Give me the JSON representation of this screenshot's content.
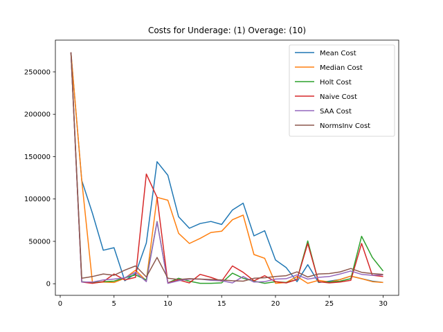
{
  "chart_data": {
    "type": "line",
    "title": "Costs for Underage: (1) Overage: (10)",
    "xlabel": "",
    "ylabel": "",
    "xlim": [
      -0.45,
      31.45
    ],
    "ylim": [
      -13700,
      287500
    ],
    "xticks": [
      0,
      5,
      10,
      15,
      20,
      25,
      30
    ],
    "yticks": [
      0,
      50000,
      100000,
      150000,
      200000,
      250000
    ],
    "legend_position": "top-right",
    "x": [
      1,
      2,
      3,
      4,
      5,
      6,
      7,
      8,
      9,
      10,
      11,
      12,
      13,
      14,
      15,
      16,
      17,
      18,
      19,
      20,
      21,
      22,
      23,
      24,
      25,
      26,
      27,
      28,
      29,
      30
    ],
    "series": [
      {
        "name": "Mean Cost",
        "color": "#1f77b4",
        "values": [
          273000,
          122000,
          83000,
          39500,
          42500,
          3500,
          12000,
          48000,
          144000,
          128000,
          79000,
          65500,
          71000,
          73500,
          70000,
          87000,
          95000,
          56500,
          62500,
          28000,
          19000,
          2500,
          22500,
          1500,
          3000,
          5000,
          9000,
          6000,
          3000,
          1500
        ]
      },
      {
        "name": "Median Cost",
        "color": "#ff7f0e",
        "values": [
          273000,
          122000,
          1000,
          2000,
          1500,
          6500,
          16000,
          3500,
          102000,
          98500,
          59500,
          47500,
          53500,
          60500,
          62000,
          75500,
          81000,
          34500,
          30000,
          500,
          1500,
          8500,
          500,
          4000,
          2000,
          5000,
          9000,
          6000,
          2500,
          1500
        ]
      },
      {
        "name": "Holt Cost",
        "color": "#2ca02c",
        "values": [
          273000,
          2500,
          1500,
          2500,
          3000,
          7000,
          10500,
          4500,
          73500,
          1000,
          6500,
          3000,
          500,
          500,
          1000,
          12500,
          6500,
          3000,
          500,
          2500,
          1500,
          5000,
          50500,
          2000,
          2000,
          3000,
          6000,
          56000,
          31000,
          15000
        ]
      },
      {
        "name": "Naive Cost",
        "color": "#d62728",
        "values": [
          273000,
          2000,
          500,
          2500,
          11500,
          4500,
          7500,
          129500,
          102000,
          1000,
          4500,
          1000,
          11000,
          7500,
          3000,
          21000,
          13500,
          3500,
          9500,
          2500,
          1000,
          5000,
          47500,
          2500,
          1000,
          2000,
          4000,
          47500,
          10000,
          8500
        ]
      },
      {
        "name": "SAA Cost",
        "color": "#9467bd",
        "values": [
          273000,
          2000,
          2000,
          4500,
          5500,
          7000,
          13500,
          2500,
          73000,
          500,
          3500,
          5500,
          5500,
          4000,
          3500,
          1000,
          8500,
          2000,
          2500,
          5500,
          6000,
          10500,
          5500,
          7500,
          8500,
          11500,
          15000,
          11000,
          10000,
          10500
        ]
      },
      {
        "name": "NormsInv Cost",
        "color": "#8c564b",
        "values": [
          273000,
          6500,
          8500,
          11500,
          10000,
          16000,
          21000,
          8000,
          31000,
          6500,
          5000,
          6000,
          5500,
          5000,
          4500,
          3500,
          3000,
          6500,
          7000,
          8500,
          9500,
          14000,
          8000,
          11500,
          12000,
          14000,
          18000,
          13500,
          12000,
          11000
        ]
      }
    ]
  }
}
